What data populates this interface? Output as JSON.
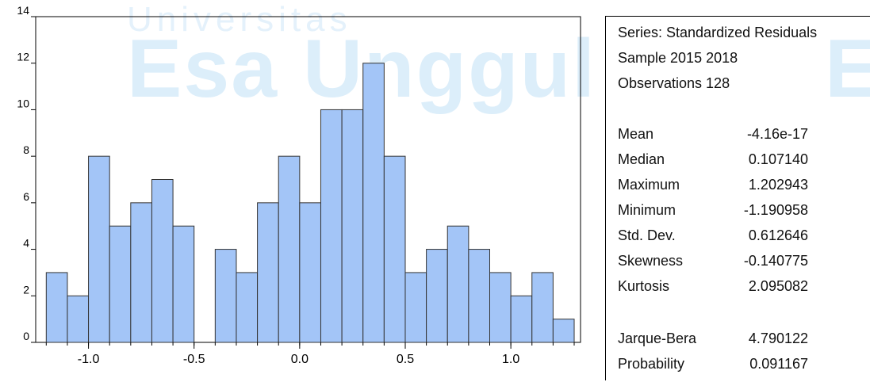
{
  "watermark": {
    "top_text": "Universitas",
    "main_text": "Esa Unggul",
    "right_text": "E",
    "color": "#dceefa"
  },
  "chart_data": {
    "type": "bar",
    "title": "",
    "xlabel": "",
    "ylabel": "",
    "bin_width": 0.1,
    "bin_starts": [
      -1.2,
      -1.1,
      -1.0,
      -0.9,
      -0.8,
      -0.7,
      -0.6,
      -0.5,
      -0.4,
      -0.3,
      -0.2,
      -0.1,
      0.0,
      0.1,
      0.2,
      0.3,
      0.4,
      0.5,
      0.6,
      0.7,
      0.8,
      0.9,
      1.0,
      1.1,
      1.2
    ],
    "values": [
      3,
      2,
      8,
      5,
      6,
      7,
      5,
      0,
      4,
      3,
      6,
      8,
      6,
      10,
      10,
      12,
      8,
      3,
      4,
      5,
      4,
      3,
      2,
      3,
      1
    ],
    "xlim": [
      -1.25,
      1.33
    ],
    "ylim": [
      0,
      14
    ],
    "xticks": [
      -1.0,
      -0.5,
      0.0,
      0.5,
      1.0
    ],
    "xtick_labels": [
      "-1.0",
      "-0.5",
      "0.0",
      "0.5",
      "1.0"
    ],
    "yticks": [
      0,
      2,
      4,
      6,
      8,
      10,
      12,
      14
    ],
    "ytick_labels": [
      "0",
      "2",
      "4",
      "6",
      "8",
      "10",
      "12",
      "14"
    ],
    "bar_color": "#a3c5f7",
    "bar_edge_color": "#333333",
    "grid": false
  },
  "stats": {
    "series_line": "Series: Standardized Residuals",
    "sample_line": "Sample 2015 2018",
    "observations_line": "Observations 128",
    "rows": [
      {
        "label": "Mean",
        "value": "-4.16e-17"
      },
      {
        "label": "Median",
        "value": "0.107140"
      },
      {
        "label": "Maximum",
        "value": "1.202943"
      },
      {
        "label": "Minimum",
        "value": "-1.190958"
      },
      {
        "label": "Std. Dev.",
        "value": "0.612646"
      },
      {
        "label": "Skewness",
        "value": "-0.140775"
      },
      {
        "label": "Kurtosis",
        "value": "2.095082"
      }
    ],
    "jb_rows": [
      {
        "label": "Jarque-Bera",
        "value": "4.790122"
      },
      {
        "label": "Probability",
        "value": "0.091167"
      }
    ]
  }
}
